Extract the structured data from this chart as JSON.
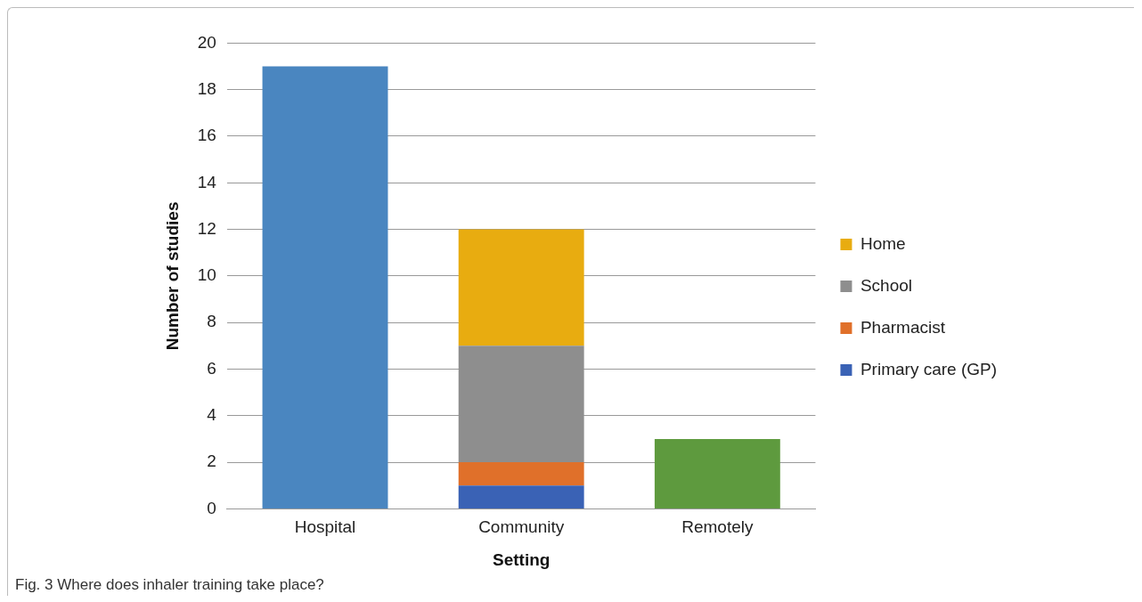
{
  "chart_data": {
    "type": "bar",
    "stacked": true,
    "categories": [
      "Hospital",
      "Community",
      "Remotely"
    ],
    "series": [
      {
        "color": "#4a86c0",
        "values": [
          19,
          null,
          null
        ]
      },
      {
        "name": "Primary care (GP)",
        "color": "#3a62b5",
        "values": [
          null,
          1,
          null
        ]
      },
      {
        "name": "Pharmacist",
        "color": "#e0702a",
        "values": [
          null,
          1,
          null
        ]
      },
      {
        "name": "School",
        "color": "#8e8e8e",
        "values": [
          null,
          5,
          null
        ]
      },
      {
        "name": "Home",
        "color": "#e8ac10",
        "values": [
          null,
          5,
          null
        ]
      },
      {
        "color": "#5e9a3e",
        "values": [
          null,
          null,
          3
        ]
      }
    ],
    "xlabel": "Setting",
    "ylabel": "Number of studies",
    "ylim": [
      0,
      20
    ],
    "yticks": [
      0,
      2,
      4,
      6,
      8,
      10,
      12,
      14,
      16,
      18,
      20
    ],
    "grid": "y",
    "legend": "right",
    "annotations": [
      "Fig. 3 Where does inhaler training take place?"
    ]
  }
}
